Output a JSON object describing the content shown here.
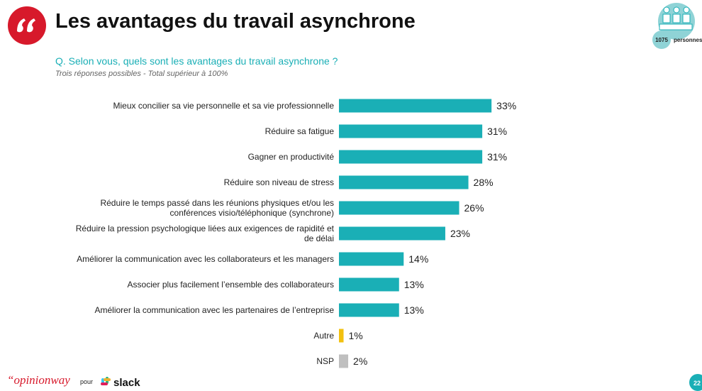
{
  "header": {
    "title": "Les avantages du travail asynchrone",
    "question": "Q. Selon vous, quels sont les avantages du travail asynchrone ?",
    "note": "Trois réponses possibles - Total supérieur à 100%",
    "sample_size": "1075",
    "sample_unit": "personnes"
  },
  "footer": {
    "brand": "“opinionway",
    "for": "pour",
    "client": "slack",
    "page": "22"
  },
  "chart_data": {
    "type": "bar",
    "orientation": "horizontal",
    "categories": [
      "Mieux concilier sa vie personnelle et sa vie professionnelle",
      "Réduire sa fatigue",
      "Gagner en productivité",
      "Réduire son niveau de stress",
      "Réduire le temps passé dans les réunions physiques et/ou les conférences visio/téléphonique (synchrone)",
      "Réduire la pression psychologique liées aux exigences de rapidité et de délai",
      "Améliorer la communication avec les collaborateurs et les managers",
      "Associer plus facilement l’ensemble des collaborateurs",
      "Améliorer la communication avec les partenaires de l’entreprise",
      "Autre",
      "NSP"
    ],
    "values": [
      33,
      31,
      31,
      28,
      26,
      23,
      14,
      13,
      13,
      1,
      2
    ],
    "value_labels": [
      "33%",
      "31%",
      "31%",
      "28%",
      "26%",
      "23%",
      "14%",
      "13%",
      "13%",
      "1%",
      "2%"
    ],
    "colors": [
      "#1aafb6",
      "#1aafb6",
      "#1aafb6",
      "#1aafb6",
      "#1aafb6",
      "#1aafb6",
      "#1aafb6",
      "#1aafb6",
      "#1aafb6",
      "#f2c00f",
      "#bfbfbf"
    ]
  }
}
